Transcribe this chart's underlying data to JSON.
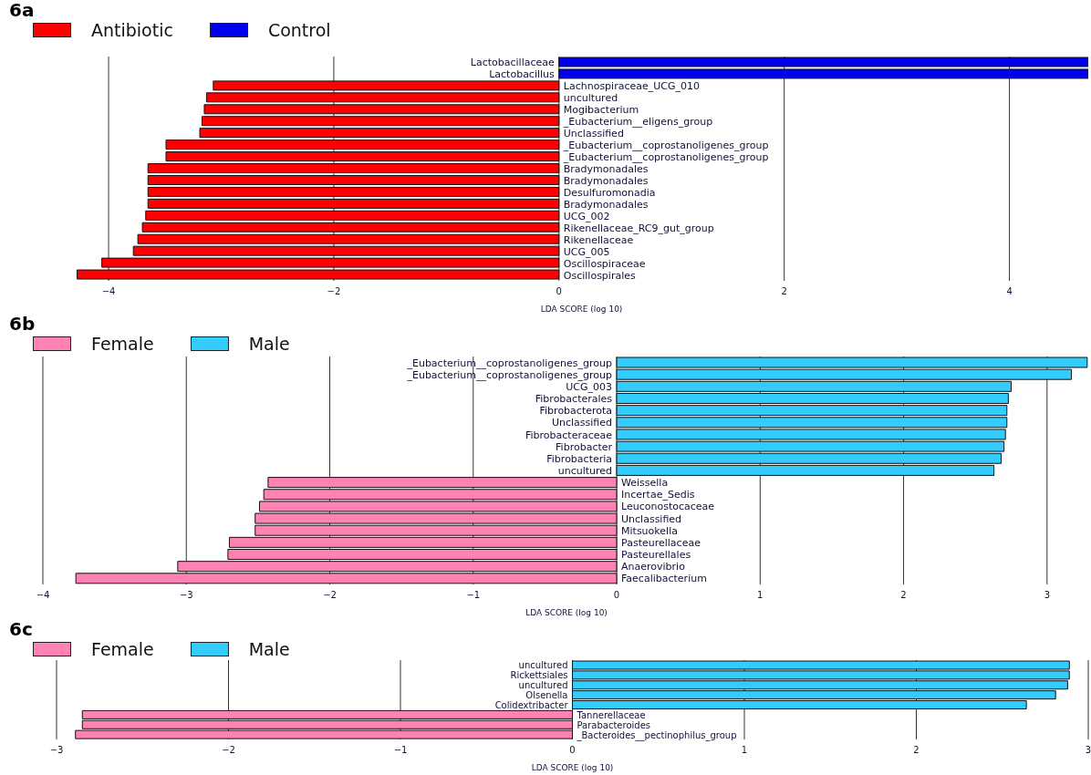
{
  "chart_data": [
    {
      "type": "bar",
      "orientation": "horizontal",
      "title": "6a",
      "xlabel": "LDA SCORE (log 10)",
      "legend": "top left",
      "grid": "x",
      "categories": [
        "Lactobacillaceae",
        "Lactobacillus",
        "Lachnospiraceae_UCG_010",
        "uncultured",
        "Mogibacterium",
        "_Eubacterium__eligens_group",
        "Unclassified",
        "_Eubacterium__coprostanoligenes_group",
        "_Eubacterium__coprostanoligenes_group",
        "Bradymonadales",
        "Bradymonadales",
        "Desulfuromonadia",
        "Bradymonadales",
        "UCG_002",
        "Rikenellaceae_RC9_gut_group",
        "Rikenellaceae",
        "UCG_005",
        "Oscillospiraceae",
        "Oscillospirales"
      ],
      "series": [
        {
          "name": "Antibiotic",
          "color": "#ff0000",
          "values": [
            null,
            null,
            -3.07,
            -3.13,
            -3.15,
            -3.17,
            -3.19,
            -3.49,
            -3.49,
            -3.65,
            -3.65,
            -3.65,
            -3.65,
            -3.67,
            -3.7,
            -3.74,
            -3.78,
            -4.06,
            -4.28
          ]
        },
        {
          "name": "Control",
          "color": "#0000ee",
          "values": [
            4.7,
            4.7,
            null,
            null,
            null,
            null,
            null,
            null,
            null,
            null,
            null,
            null,
            null,
            null,
            null,
            null,
            null,
            null,
            null
          ]
        }
      ],
      "xlim": [
        -4.3,
        4.7
      ],
      "xticks": [
        {
          "value": -4,
          "label": "−4"
        },
        {
          "value": -2,
          "label": "−2"
        },
        0,
        2,
        4
      ]
    },
    {
      "type": "bar",
      "orientation": "horizontal",
      "title": "6b",
      "xlabel": "LDA SCORE (log 10)",
      "legend": "top left",
      "grid": "x",
      "categories": [
        "_Eubacterium__coprostanoligenes_group",
        "_Eubacterium__coprostanoligenes_group",
        "UCG_003",
        "Fibrobacterales",
        "Fibrobacterota",
        "Unclassified",
        "Fibrobacteraceae",
        "Fibrobacter",
        "Fibrobacteria",
        "uncultured",
        "Weissella",
        "Incertae_Sedis",
        "Leuconostocaceae",
        "Unclassified",
        "Mitsuokella",
        "Pasteurellaceae",
        "Pasteurellales",
        "Anaerovibrio",
        "Faecalibacterium"
      ],
      "series": [
        {
          "name": "Female",
          "color": "#ff82b4",
          "values": [
            null,
            null,
            null,
            null,
            null,
            null,
            null,
            null,
            null,
            null,
            -2.43,
            -2.46,
            -2.49,
            -2.52,
            -2.52,
            -2.7,
            -2.71,
            -3.06,
            -3.77
          ]
        },
        {
          "name": "Male",
          "color": "#33ccff",
          "values": [
            3.28,
            3.17,
            2.75,
            2.73,
            2.72,
            2.72,
            2.71,
            2.7,
            2.68,
            2.63,
            null,
            null,
            null,
            null,
            null,
            null,
            null,
            null,
            null
          ]
        }
      ],
      "xlim": [
        -4,
        3.3
      ],
      "xticks": [
        {
          "value": -4,
          "label": "−4"
        },
        {
          "value": -3,
          "label": "−3"
        },
        {
          "value": -2,
          "label": "−2"
        },
        {
          "value": -1,
          "label": "−1"
        },
        0,
        1,
        2,
        3
      ]
    },
    {
      "type": "bar",
      "orientation": "horizontal",
      "title": "6c",
      "xlabel": "LDA SCORE (log 10)",
      "legend": "top left",
      "grid": "x",
      "categories": [
        "uncultured",
        "Rickettsiales",
        "uncultured",
        "Olsenella",
        "Colidextribacter",
        "Tannerellaceae",
        "Parabacteroides",
        "_Bacteroides__pectinophilus_group"
      ],
      "series": [
        {
          "name": "Female",
          "color": "#ff82b4",
          "values": [
            null,
            null,
            null,
            null,
            null,
            -2.85,
            -2.85,
            -2.89
          ]
        },
        {
          "name": "Male",
          "color": "#33ccff",
          "values": [
            2.89,
            2.89,
            2.88,
            2.81,
            2.64,
            null,
            null,
            null
          ]
        }
      ],
      "xlim": [
        -3,
        3
      ],
      "xticks": [
        {
          "value": -3,
          "label": "−3"
        },
        {
          "value": -2,
          "label": "−2"
        },
        {
          "value": -1,
          "label": "−1"
        },
        0,
        1,
        2,
        3
      ]
    }
  ]
}
